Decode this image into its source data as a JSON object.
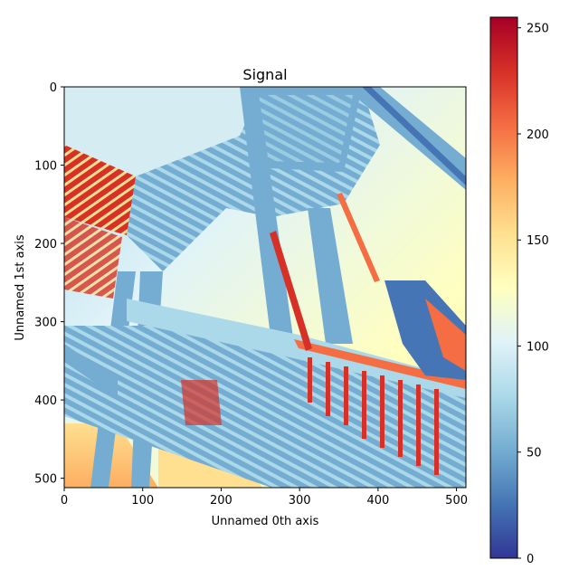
{
  "chart_data": {
    "type": "heatmap",
    "title": "Signal",
    "xlabel": "Unnamed 0th axis",
    "ylabel": "Unnamed 1st axis",
    "xlim": [
      0,
      512
    ],
    "ylim": [
      512,
      0
    ],
    "x_ticks": [
      0,
      100,
      200,
      300,
      400,
      500
    ],
    "y_ticks": [
      0,
      100,
      200,
      300,
      400,
      500
    ],
    "colormap": "RdYlBu_r",
    "colorbar": {
      "range": [
        0,
        255
      ],
      "ticks": [
        0,
        50,
        100,
        150,
        200,
        250
      ],
      "colors": [
        "#313695",
        "#4575b4",
        "#74add1",
        "#abd9e9",
        "#e0f3f8",
        "#ffffbf",
        "#fee090",
        "#fdae61",
        "#f46d43",
        "#d73027",
        "#a50026"
      ]
    },
    "image_content": "grayscale photo of outdoor metal staircase viewed from below, mapped through diverging colormap"
  }
}
